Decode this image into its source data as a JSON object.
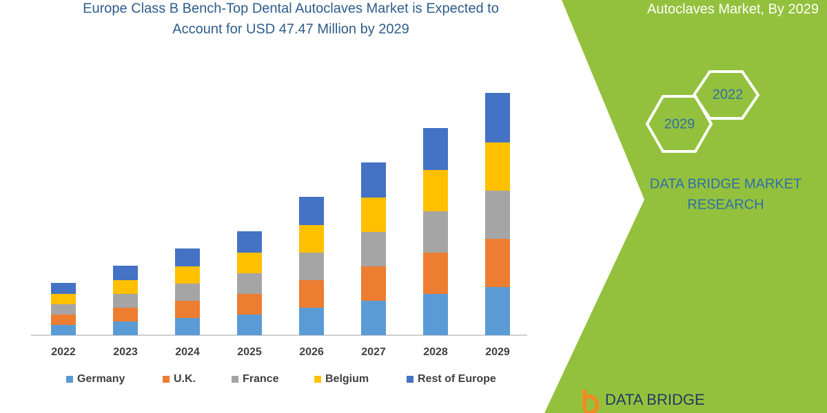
{
  "chart_data": {
    "type": "stacked_bar",
    "title": [
      "Europe Class B Bench-Top Dental Autoclaves Market is Expected to",
      "Account for USD 47.47 Million by 2029"
    ],
    "categories": [
      "2022",
      "2023",
      "2024",
      "2025",
      "2026",
      "2027",
      "2028",
      "2029"
    ],
    "series": [
      {
        "name": "Germany",
        "color": "#5b9bd5",
        "values": [
          15,
          20,
          25,
          30,
          40,
          50,
          60,
          70
        ]
      },
      {
        "name": "U.K.",
        "color": "#ed7d31",
        "values": [
          15,
          20,
          25,
          30,
          40,
          50,
          60,
          70
        ]
      },
      {
        "name": "France",
        "color": "#a5a5a5",
        "values": [
          15,
          20,
          25,
          30,
          40,
          50,
          60,
          70
        ]
      },
      {
        "name": "Belgium",
        "color": "#ffc000",
        "values": [
          15,
          20,
          25,
          30,
          40,
          50,
          60,
          70
        ]
      },
      {
        "name": "Rest of Europe",
        "color": "#4472c4",
        "values": [
          16,
          21,
          26,
          31,
          41,
          51,
          61,
          72
        ]
      }
    ],
    "ylim": [
      0,
      360
    ]
  },
  "side_panel": {
    "title": "Autoclaves Market, By 2029",
    "hexagons": [
      "2022",
      "2029"
    ],
    "company": [
      "DATA BRIDGE MARKET",
      "RESEARCH"
    ],
    "logo": "DATA BRIDGE"
  }
}
